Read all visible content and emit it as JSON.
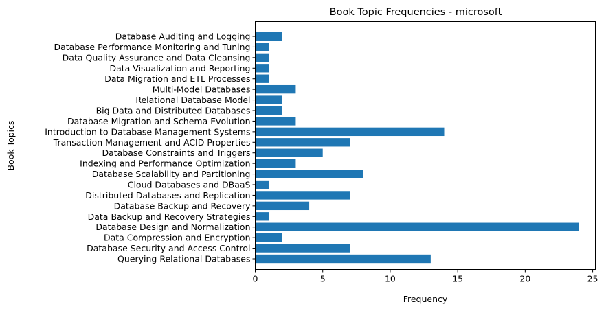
{
  "chart_data": {
    "type": "bar",
    "orientation": "horizontal",
    "title": "Book Topic Frequencies - microsoft",
    "xlabel": "Frequency",
    "ylabel": "Book Topics",
    "xlim": [
      0,
      25.2
    ],
    "xticks": [
      0,
      5,
      10,
      15,
      20,
      25
    ],
    "grid": false,
    "bar_color": "#1f77b4",
    "categories": [
      "Querying Relational Databases",
      "Database Security and Access Control",
      "Data Compression and Encryption",
      "Database Design and Normalization",
      "Data Backup and Recovery Strategies",
      "Database Backup and Recovery",
      "Distributed Databases and Replication",
      "Cloud Databases and DBaaS",
      "Database Scalability and Partitioning",
      "Indexing and Performance Optimization",
      "Database Constraints and Triggers",
      "Transaction Management and ACID Properties",
      "Introduction to Database Management Systems",
      "Database Migration and Schema Evolution",
      "Big Data and Distributed Databases",
      "Relational Database Model",
      "Multi-Model Databases",
      "Data Migration and ETL Processes",
      "Data Visualization and Reporting",
      "Data Quality Assurance and Data Cleansing",
      "Database Performance Monitoring and Tuning",
      "Database Auditing and Logging"
    ],
    "values": [
      13,
      7,
      2,
      24,
      1,
      4,
      7,
      1,
      8,
      3,
      5,
      7,
      14,
      3,
      2,
      2,
      3,
      1,
      1,
      1,
      1,
      2
    ]
  }
}
